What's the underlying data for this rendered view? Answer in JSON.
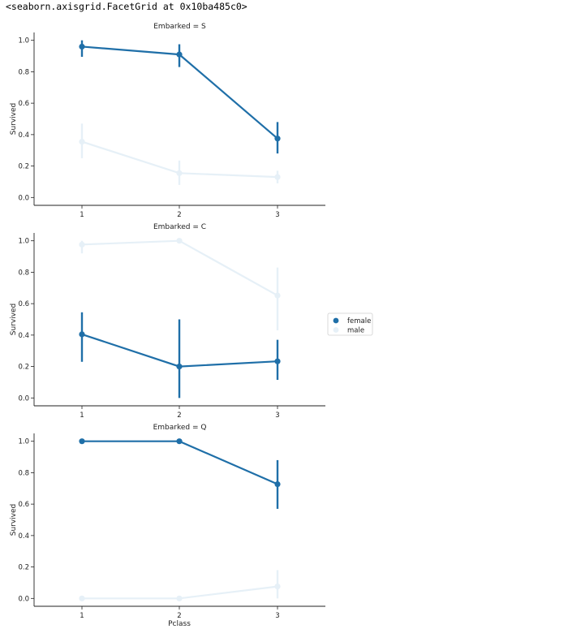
{
  "output_repr": "<seaborn.axisgrid.FacetGrid at 0x10ba485c0>",
  "chart_data": {
    "type": "line",
    "style": "pointplot-with-error-bars",
    "xlabel": "Pclass",
    "ylabel": "Survived",
    "categories": [
      "1",
      "2",
      "3"
    ],
    "ylim": [
      -0.05,
      1.05
    ],
    "yticks": [
      "0.0",
      "0.2",
      "0.4",
      "0.6",
      "0.8",
      "1.0"
    ],
    "grid": false,
    "legend": {
      "placement": "right",
      "entries": [
        {
          "label": "female",
          "color": "#1f6fa8"
        },
        {
          "label": "male",
          "color": "#e6f0f7"
        }
      ]
    },
    "facets": [
      {
        "title": "Embarked = S",
        "series": [
          {
            "name": "female",
            "color": "#1f6fa8",
            "values": [
              0.96,
              0.91,
              0.375
            ],
            "ci_low": [
              0.895,
              0.83,
              0.28
            ],
            "ci_high": [
              1.0,
              0.975,
              0.48
            ]
          },
          {
            "name": "male",
            "color": "#e6f0f7",
            "values": [
              0.355,
              0.155,
              0.13
            ],
            "ci_low": [
              0.25,
              0.08,
              0.09
            ],
            "ci_high": [
              0.47,
              0.235,
              0.17
            ]
          }
        ]
      },
      {
        "title": "Embarked = C",
        "series": [
          {
            "name": "female",
            "color": "#1f6fa8",
            "values": [
              0.405,
              0.2,
              0.233
            ],
            "ci_low": [
              0.23,
              0.0,
              0.115
            ],
            "ci_high": [
              0.545,
              0.5,
              0.37
            ]
          },
          {
            "name": "male",
            "color": "#e6f0f7",
            "values": [
              0.976,
              1.0,
              0.652
            ],
            "ci_low": [
              0.92,
              1.0,
              0.43
            ],
            "ci_high": [
              1.0,
              1.0,
              0.83
            ]
          }
        ]
      },
      {
        "title": "Embarked = Q",
        "series": [
          {
            "name": "female",
            "color": "#1f6fa8",
            "values": [
              1.0,
              1.0,
              0.727
            ],
            "ci_low": [
              1.0,
              1.0,
              0.57
            ],
            "ci_high": [
              1.0,
              1.0,
              0.88
            ]
          },
          {
            "name": "male",
            "color": "#e6f0f7",
            "values": [
              0.0,
              0.0,
              0.076
            ],
            "ci_low": [
              0.0,
              0.0,
              0.0
            ],
            "ci_high": [
              0.0,
              0.0,
              0.18
            ]
          }
        ]
      }
    ]
  }
}
